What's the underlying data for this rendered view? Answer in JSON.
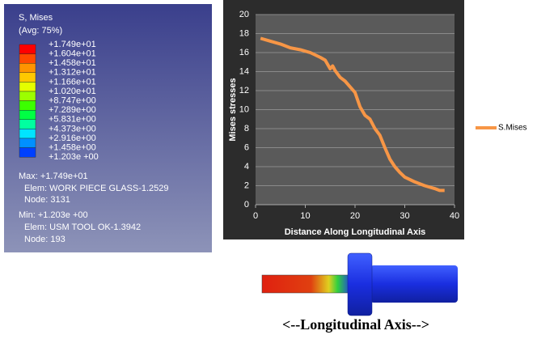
{
  "legend_panel": {
    "title": "S, Mises",
    "subtitle": "(Avg: 75%)",
    "labels": [
      "+1.749e+01",
      "+1.604e+01",
      "+1.458e+01",
      "+1.312e+01",
      "+1.166e+01",
      "+1.020e+01",
      "+8.747e+00",
      "+7.289e+00",
      "+5.831e+00",
      "+4.373e+00",
      "+2.916e+00",
      "+1.458e+00",
      "+1.203e +00"
    ],
    "max": "Max: +1.749e+01",
    "max_elem": "Elem: WORK PIECE GLASS-1.2529",
    "max_node": "Node: 3131",
    "min": "Min: +1.203e +00",
    "min_elem": "Elem: USM TOOL OK-1.3942",
    "min_node": "Node: 193"
  },
  "chart_data": {
    "type": "line",
    "xlabel": "Distance Along Longitudinal Axis",
    "ylabel": "Mises stresses",
    "xlim": [
      0,
      40
    ],
    "xticks": [
      0,
      10,
      20,
      30,
      40
    ],
    "ylim": [
      0,
      20
    ],
    "yticks": [
      0,
      2,
      4,
      6,
      8,
      10,
      12,
      14,
      16,
      18,
      20
    ],
    "grid": true,
    "legend": "right",
    "series": [
      {
        "name": "S.Mises",
        "color": "#f79646",
        "x": [
          1,
          3,
          5,
          7,
          9,
          11,
          13,
          14,
          15,
          15.5,
          16,
          17,
          18,
          19,
          20,
          21,
          22,
          23,
          24,
          25,
          26,
          27,
          28,
          29,
          30,
          32,
          34,
          36,
          37,
          38
        ],
        "values": [
          17.5,
          17.2,
          16.9,
          16.5,
          16.3,
          16.0,
          15.5,
          15.2,
          14.3,
          14.6,
          14.1,
          13.4,
          13.0,
          12.4,
          11.8,
          10.3,
          9.4,
          9.0,
          8.0,
          7.3,
          6.0,
          4.8,
          4.0,
          3.4,
          2.9,
          2.4,
          2.0,
          1.7,
          1.5,
          1.5
        ]
      }
    ]
  },
  "caption": "<--Longitudinal Axis-->"
}
